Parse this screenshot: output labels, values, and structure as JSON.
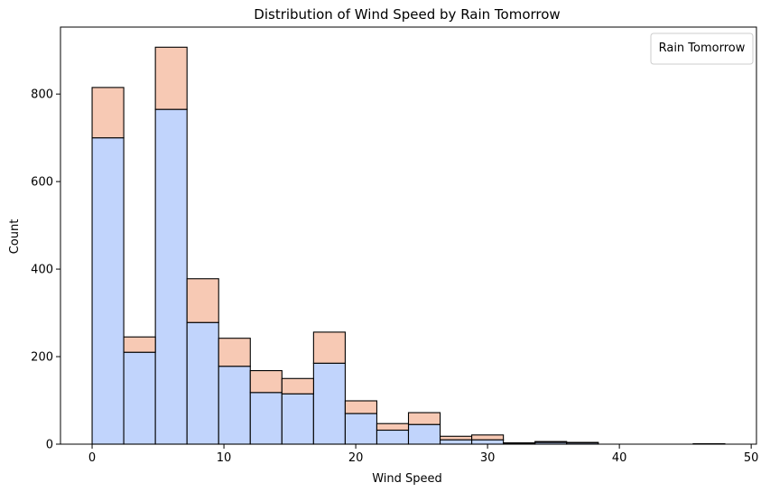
{
  "chart_data": {
    "type": "bar",
    "stacked": true,
    "title": "Distribution of Wind Speed by Rain Tomorrow",
    "xlabel": "Wind Speed",
    "ylabel": "Count",
    "xlim": [
      -2.4,
      50.4
    ],
    "ylim": [
      0,
      953
    ],
    "xticks": [
      0,
      10,
      20,
      30,
      40,
      50
    ],
    "yticks": [
      0,
      200,
      400,
      600,
      800
    ],
    "grid": false,
    "legend": {
      "title": "Rain Tomorrow",
      "placement": "top-right",
      "entries": []
    },
    "bin_edges": [
      0,
      2.4,
      4.8,
      7.2,
      9.6,
      12,
      14.4,
      16.8,
      19.2,
      21.6,
      24,
      26.4,
      28.8,
      31.2,
      33.6,
      36,
      38.4,
      40.8,
      43.2,
      45.6,
      48
    ],
    "series": [
      {
        "values": [
          700,
          210,
          765,
          278,
          178,
          118,
          115,
          185,
          70,
          32,
          45,
          10,
          10,
          2,
          4,
          3,
          0,
          0,
          0,
          1
        ],
        "color": "#c1d4fc"
      },
      {
        "values": [
          115,
          35,
          142,
          100,
          64,
          50,
          35,
          71,
          29,
          15,
          27,
          8,
          11,
          1,
          2,
          1,
          0,
          0,
          0,
          0
        ],
        "color": "#f7c9b4"
      }
    ]
  }
}
